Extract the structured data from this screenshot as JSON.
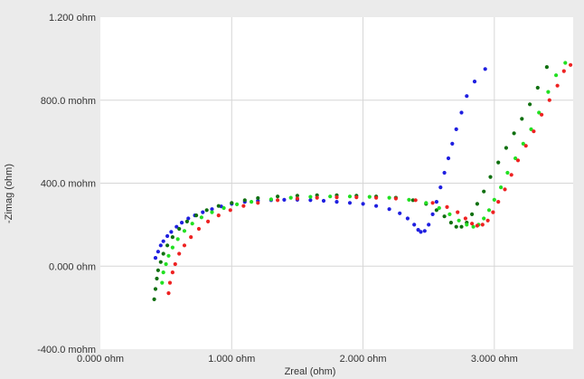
{
  "chart_data": {
    "type": "scatter",
    "title": "",
    "xlabel": "Zreal (ohm)",
    "ylabel": "-Zimag (ohm)",
    "xlim": [
      0,
      3.6
    ],
    "ylim": [
      -0.4,
      1.2
    ],
    "x_ticks": [
      {
        "value": 0,
        "label": "0.000 ohm"
      },
      {
        "value": 1,
        "label": "1.000 ohm"
      },
      {
        "value": 2,
        "label": "2.000 ohm"
      },
      {
        "value": 3,
        "label": "3.000 ohm"
      }
    ],
    "y_ticks": [
      {
        "value": 1.2,
        "label": "1.200 ohm"
      },
      {
        "value": 0.8,
        "label": "800.0 mohm"
      },
      {
        "value": 0.4,
        "label": "400.0 mohm"
      },
      {
        "value": 0.0,
        "label": "0.000 ohm"
      },
      {
        "value": -0.4,
        "label": "-400.0 mohm"
      }
    ],
    "grid": true,
    "legend": "none",
    "series": [
      {
        "color": "#1f1fe0",
        "points": [
          [
            0.42,
            0.04
          ],
          [
            0.44,
            0.07
          ],
          [
            0.46,
            0.1
          ],
          [
            0.48,
            0.12
          ],
          [
            0.51,
            0.145
          ],
          [
            0.54,
            0.165
          ],
          [
            0.58,
            0.19
          ],
          [
            0.62,
            0.21
          ],
          [
            0.67,
            0.23
          ],
          [
            0.72,
            0.245
          ],
          [
            0.78,
            0.26
          ],
          [
            0.85,
            0.275
          ],
          [
            0.92,
            0.288
          ],
          [
            1.0,
            0.3
          ],
          [
            1.1,
            0.31
          ],
          [
            1.2,
            0.315
          ],
          [
            1.3,
            0.318
          ],
          [
            1.4,
            0.32
          ],
          [
            1.5,
            0.32
          ],
          [
            1.6,
            0.318
          ],
          [
            1.7,
            0.315
          ],
          [
            1.8,
            0.31
          ],
          [
            1.9,
            0.305
          ],
          [
            2.0,
            0.3
          ],
          [
            2.1,
            0.29
          ],
          [
            2.2,
            0.275
          ],
          [
            2.28,
            0.255
          ],
          [
            2.34,
            0.23
          ],
          [
            2.39,
            0.2
          ],
          [
            2.42,
            0.175
          ],
          [
            2.44,
            0.165
          ],
          [
            2.47,
            0.17
          ],
          [
            2.5,
            0.2
          ],
          [
            2.53,
            0.25
          ],
          [
            2.56,
            0.31
          ],
          [
            2.59,
            0.38
          ],
          [
            2.62,
            0.45
          ],
          [
            2.65,
            0.52
          ],
          [
            2.68,
            0.59
          ],
          [
            2.71,
            0.66
          ],
          [
            2.75,
            0.74
          ],
          [
            2.79,
            0.82
          ],
          [
            2.85,
            0.89
          ],
          [
            2.93,
            0.95
          ]
        ]
      },
      {
        "color": "#107010",
        "points": [
          [
            0.41,
            -0.16
          ],
          [
            0.42,
            -0.11
          ],
          [
            0.43,
            -0.06
          ],
          [
            0.44,
            -0.02
          ],
          [
            0.46,
            0.02
          ],
          [
            0.48,
            0.06
          ],
          [
            0.51,
            0.1
          ],
          [
            0.55,
            0.14
          ],
          [
            0.6,
            0.18
          ],
          [
            0.66,
            0.215
          ],
          [
            0.73,
            0.245
          ],
          [
            0.81,
            0.27
          ],
          [
            0.9,
            0.29
          ],
          [
            1.0,
            0.305
          ],
          [
            1.1,
            0.318
          ],
          [
            1.2,
            0.328
          ],
          [
            1.35,
            0.336
          ],
          [
            1.5,
            0.34
          ],
          [
            1.65,
            0.342
          ],
          [
            1.8,
            0.342
          ],
          [
            1.95,
            0.34
          ],
          [
            2.1,
            0.336
          ],
          [
            2.25,
            0.33
          ],
          [
            2.38,
            0.318
          ],
          [
            2.48,
            0.3
          ],
          [
            2.56,
            0.27
          ],
          [
            2.62,
            0.24
          ],
          [
            2.67,
            0.21
          ],
          [
            2.71,
            0.19
          ],
          [
            2.75,
            0.19
          ],
          [
            2.79,
            0.21
          ],
          [
            2.83,
            0.25
          ],
          [
            2.87,
            0.3
          ],
          [
            2.92,
            0.36
          ],
          [
            2.97,
            0.43
          ],
          [
            3.03,
            0.5
          ],
          [
            3.09,
            0.57
          ],
          [
            3.15,
            0.64
          ],
          [
            3.21,
            0.71
          ],
          [
            3.27,
            0.78
          ],
          [
            3.33,
            0.86
          ],
          [
            3.4,
            0.96
          ]
        ]
      },
      {
        "color": "#22e022",
        "points": [
          [
            0.47,
            -0.08
          ],
          [
            0.48,
            -0.03
          ],
          [
            0.5,
            0.01
          ],
          [
            0.52,
            0.05
          ],
          [
            0.55,
            0.09
          ],
          [
            0.59,
            0.13
          ],
          [
            0.64,
            0.17
          ],
          [
            0.7,
            0.205
          ],
          [
            0.77,
            0.235
          ],
          [
            0.85,
            0.26
          ],
          [
            0.94,
            0.28
          ],
          [
            1.04,
            0.298
          ],
          [
            1.15,
            0.31
          ],
          [
            1.3,
            0.322
          ],
          [
            1.45,
            0.33
          ],
          [
            1.6,
            0.334
          ],
          [
            1.75,
            0.336
          ],
          [
            1.9,
            0.336
          ],
          [
            2.05,
            0.334
          ],
          [
            2.2,
            0.33
          ],
          [
            2.35,
            0.32
          ],
          [
            2.48,
            0.305
          ],
          [
            2.58,
            0.28
          ],
          [
            2.66,
            0.25
          ],
          [
            2.73,
            0.22
          ],
          [
            2.79,
            0.2
          ],
          [
            2.84,
            0.19
          ],
          [
            2.88,
            0.2
          ],
          [
            2.92,
            0.23
          ],
          [
            2.96,
            0.27
          ],
          [
            3.0,
            0.32
          ],
          [
            3.05,
            0.38
          ],
          [
            3.1,
            0.45
          ],
          [
            3.16,
            0.52
          ],
          [
            3.22,
            0.59
          ],
          [
            3.28,
            0.66
          ],
          [
            3.34,
            0.74
          ],
          [
            3.41,
            0.84
          ],
          [
            3.47,
            0.92
          ],
          [
            3.54,
            0.98
          ]
        ]
      },
      {
        "color": "#ee2222",
        "points": [
          [
            0.52,
            -0.13
          ],
          [
            0.53,
            -0.08
          ],
          [
            0.55,
            -0.03
          ],
          [
            0.57,
            0.01
          ],
          [
            0.6,
            0.06
          ],
          [
            0.64,
            0.1
          ],
          [
            0.69,
            0.14
          ],
          [
            0.75,
            0.18
          ],
          [
            0.82,
            0.215
          ],
          [
            0.9,
            0.245
          ],
          [
            0.99,
            0.27
          ],
          [
            1.09,
            0.29
          ],
          [
            1.2,
            0.305
          ],
          [
            1.35,
            0.318
          ],
          [
            1.5,
            0.326
          ],
          [
            1.65,
            0.33
          ],
          [
            1.8,
            0.332
          ],
          [
            1.95,
            0.332
          ],
          [
            2.1,
            0.33
          ],
          [
            2.25,
            0.326
          ],
          [
            2.4,
            0.318
          ],
          [
            2.53,
            0.305
          ],
          [
            2.64,
            0.285
          ],
          [
            2.72,
            0.26
          ],
          [
            2.78,
            0.23
          ],
          [
            2.83,
            0.205
          ],
          [
            2.87,
            0.195
          ],
          [
            2.91,
            0.2
          ],
          [
            2.95,
            0.22
          ],
          [
            2.99,
            0.26
          ],
          [
            3.03,
            0.31
          ],
          [
            3.08,
            0.37
          ],
          [
            3.13,
            0.44
          ],
          [
            3.18,
            0.51
          ],
          [
            3.24,
            0.58
          ],
          [
            3.3,
            0.65
          ],
          [
            3.36,
            0.73
          ],
          [
            3.42,
            0.8
          ],
          [
            3.48,
            0.87
          ],
          [
            3.53,
            0.94
          ],
          [
            3.58,
            0.97
          ]
        ]
      }
    ]
  }
}
